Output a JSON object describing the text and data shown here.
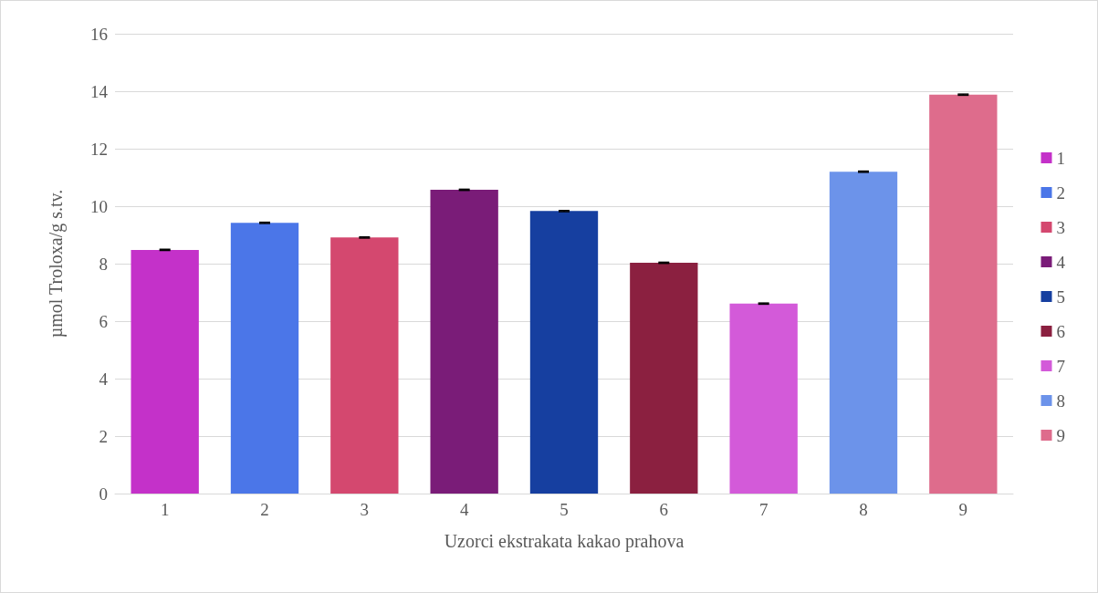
{
  "chart_data": {
    "type": "bar",
    "xlabel": "Uzorci ekstrakata kakao prahova",
    "ylabel": "µmol Troloxa/g s.tv.",
    "categories": [
      "1",
      "2",
      "3",
      "4",
      "5",
      "6",
      "7",
      "8",
      "9"
    ],
    "series": [
      {
        "name": "1",
        "color": "#c431c9",
        "values": [
          8.48,
          null,
          null,
          null,
          null,
          null,
          null,
          null,
          null
        ],
        "errors": [
          0.02,
          null,
          null,
          null,
          null,
          null,
          null,
          null,
          null
        ]
      },
      {
        "name": "2",
        "color": "#4b76e8",
        "values": [
          null,
          9.42,
          null,
          null,
          null,
          null,
          null,
          null,
          null
        ],
        "errors": [
          null,
          0.02,
          null,
          null,
          null,
          null,
          null,
          null,
          null
        ]
      },
      {
        "name": "3",
        "color": "#d4486f",
        "values": [
          null,
          null,
          8.91,
          null,
          null,
          null,
          null,
          null,
          null
        ],
        "errors": [
          null,
          null,
          0.02,
          null,
          null,
          null,
          null,
          null,
          null
        ]
      },
      {
        "name": "4",
        "color": "#7a1c78",
        "values": [
          null,
          null,
          null,
          10.57,
          null,
          null,
          null,
          null,
          null
        ],
        "errors": [
          null,
          null,
          null,
          0.02,
          null,
          null,
          null,
          null,
          null
        ]
      },
      {
        "name": "5",
        "color": "#163fa0",
        "values": [
          null,
          null,
          null,
          null,
          9.83,
          null,
          null,
          null,
          null
        ],
        "errors": [
          null,
          null,
          null,
          null,
          0.02,
          null,
          null,
          null,
          null
        ]
      },
      {
        "name": "6",
        "color": "#8b2040",
        "values": [
          null,
          null,
          null,
          null,
          null,
          8.03,
          null,
          null,
          null
        ],
        "errors": [
          null,
          null,
          null,
          null,
          null,
          0.02,
          null,
          null,
          null
        ]
      },
      {
        "name": "7",
        "color": "#d35ad9",
        "values": [
          null,
          null,
          null,
          null,
          null,
          null,
          6.61,
          null,
          null
        ],
        "errors": [
          null,
          null,
          null,
          null,
          null,
          null,
          0.02,
          null,
          null
        ]
      },
      {
        "name": "8",
        "color": "#6c93ea",
        "values": [
          null,
          null,
          null,
          null,
          null,
          null,
          null,
          11.2,
          null
        ],
        "errors": [
          null,
          null,
          null,
          null,
          null,
          null,
          null,
          0.02,
          null
        ]
      },
      {
        "name": "9",
        "color": "#de6c8c",
        "values": [
          null,
          null,
          null,
          null,
          null,
          null,
          null,
          null,
          13.88
        ],
        "errors": [
          null,
          null,
          null,
          null,
          null,
          null,
          null,
          null,
          0.02
        ]
      }
    ],
    "ylim": [
      0,
      16
    ],
    "yticks": [
      0,
      2,
      4,
      6,
      8,
      10,
      12,
      14,
      16
    ],
    "grid": "y",
    "legend": "right"
  }
}
